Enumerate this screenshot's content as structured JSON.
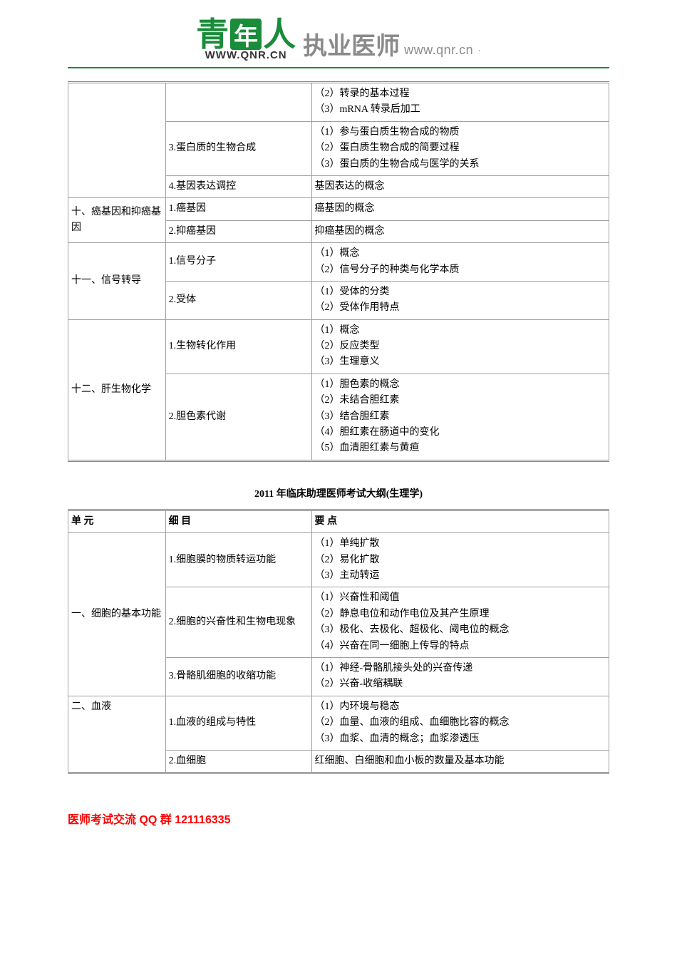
{
  "logo": {
    "qing": "青",
    "nian": "年",
    "ren": "人",
    "url": "WWW.QNR.CN"
  },
  "header": {
    "title": "执业医师",
    "link": "www.qnr.cn"
  },
  "table1": {
    "r1c3": "（2）转录的基本过程\n（3）mRNA 转录后加工",
    "r2c2": "3.蛋白质的生物合成",
    "r2c3": "（1）参与蛋白质生物合成的物质\n（2）蛋白质生物合成的简要过程\n（3）蛋白质的生物合成与医学的关系",
    "r3c2": "4.基因表达调控",
    "r3c3": "基因表达的概念",
    "r4c1": "十、癌基因和抑癌基因",
    "r4c2": "1.癌基因",
    "r4c3": "癌基因的概念",
    "r5c2": "2.抑癌基因",
    "r5c3": "抑癌基因的概念",
    "r6c1": "十一、信号转导",
    "r6c2": "1.信号分子",
    "r6c3": "（1）概念\n（2）信号分子的种类与化学本质",
    "r7c2": "2.受体",
    "r7c3": "（1）受体的分类\n（2）受体作用特点",
    "r8c1": "十二、肝生物化学",
    "r8c2": "1.生物转化作用",
    "r8c3": "（1）概念\n（2）反应类型\n（3）生理意义",
    "r9c2": "2.胆色素代谢",
    "r9c3": "（1）胆色素的概念\n（2）未结合胆红素\n（3）结合胆红素\n（4）胆红素在肠道中的变化\n（5）血清胆红素与黄疸"
  },
  "table2_title": "2011 年临床助理医师考试大纲(生理学)",
  "table2": {
    "h1": "单 元",
    "h2": "细 目",
    "h3": "要 点",
    "r1c1": "一、细胞的基本功能",
    "r1c2": "1.细胞膜的物质转运功能",
    "r1c3": "（1）单纯扩散\n（2）易化扩散\n（3）主动转运",
    "r2c2": "2.细胞的兴奋性和生物电现象",
    "r2c3": "（1）兴奋性和阈值\n（2）静息电位和动作电位及其产生原理\n（3）极化、去极化、超极化、阈电位的概念\n（4）兴奋在同一细胞上传导的特点",
    "r3c2": "3.骨骼肌细胞的收缩功能",
    "r3c3": "（1）神经-骨骼肌接头处的兴奋传递\n（2）兴奋-收缩耦联",
    "r4c1": "二、血液",
    "r4c2": "1.血液的组成与特性",
    "r4c3": "（1）内环境与稳态\n（2）血量、血液的组成、血细胞比容的概念\n（3）血浆、血清的概念；血浆渗透压",
    "r5c2": "2.血细胞",
    "r5c3": "红细胞、白细胞和血小板的数量及基本功能"
  },
  "footer": "医师考试交流 QQ 群 121116335",
  "colors": {
    "accent": "#1a8c3a",
    "border": "#a0a0a0",
    "header_gray": "#8a8a8a",
    "footer_red": "#ff0000"
  }
}
